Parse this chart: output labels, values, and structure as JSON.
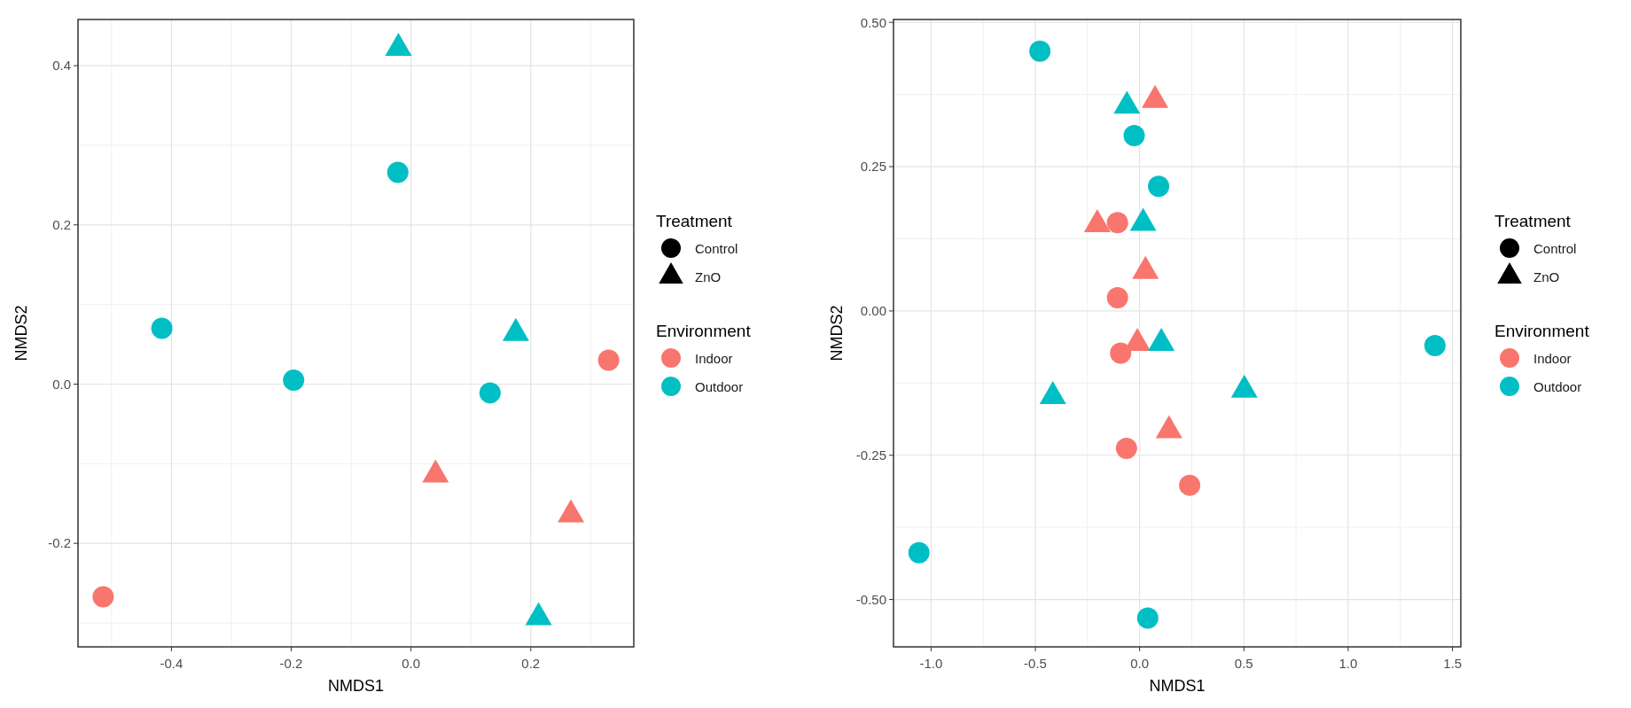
{
  "chart_data": [
    {
      "type": "scatter",
      "xlabel": "NMDS1",
      "ylabel": "NMDS2",
      "xlim": [
        -0.556,
        0.372
      ],
      "ylim": [
        -0.33,
        0.458
      ],
      "xticks": [
        {
          "value": -0.4,
          "label": "-0.4"
        },
        {
          "value": -0.2,
          "label": "-0.2"
        },
        {
          "value": 0,
          "label": "0.0"
        },
        {
          "value": 0.2,
          "label": "0.2"
        }
      ],
      "yticks": [
        {
          "value": -0.2,
          "label": "-0.2"
        },
        {
          "value": 0,
          "label": "0.0"
        },
        {
          "value": 0.2,
          "label": "0.2"
        },
        {
          "value": 0.4,
          "label": "0.4"
        }
      ],
      "grid": true,
      "legend": "right",
      "legend_title": "Environment",
      "annotations": [
        "Treatment",
        "Control",
        "ZnO"
      ],
      "series": [
        {
          "name": "Indoor",
          "color": "#f8766d",
          "marker": "circle",
          "x": [
            0.33,
            -0.514
          ],
          "values": [
            0.03,
            -0.267
          ]
        },
        {
          "color": "#f8766d",
          "marker": "triangle",
          "x": [
            0.041,
            0.267
          ],
          "values": [
            -0.114,
            -0.164
          ]
        },
        {
          "name": "Outdoor",
          "color": "#00bfc4",
          "marker": "circle",
          "x": [
            -0.022,
            -0.416,
            -0.196,
            0.132
          ],
          "values": [
            0.266,
            0.07,
            0.005,
            -0.011
          ]
        },
        {
          "color": "#00bfc4",
          "marker": "triangle",
          "x": [
            -0.021,
            0.175,
            0.213
          ],
          "values": [
            0.422,
            0.064,
            -0.293
          ]
        }
      ]
    },
    {
      "type": "scatter",
      "xlabel": "NMDS1",
      "ylabel": "NMDS2",
      "xlim": [
        -1.18,
        1.54
      ],
      "ylim": [
        -0.582,
        0.505
      ],
      "xticks": [
        {
          "value": -1,
          "label": "-1.0"
        },
        {
          "value": -0.5,
          "label": "-0.5"
        },
        {
          "value": 0,
          "label": "0.0"
        },
        {
          "value": 0.5,
          "label": "0.5"
        },
        {
          "value": 1,
          "label": "1.0"
        },
        {
          "value": 1.5,
          "label": "1.5"
        }
      ],
      "yticks": [
        {
          "value": -0.5,
          "label": "-0.50"
        },
        {
          "value": -0.25,
          "label": "-0.25"
        },
        {
          "value": 0,
          "label": "0.00"
        },
        {
          "value": 0.25,
          "label": "0.25"
        },
        {
          "value": 0.5,
          "label": "0.50"
        }
      ],
      "grid": true,
      "legend": "right",
      "legend_title": "Environment",
      "annotations": [
        "Treatment",
        "Control",
        "ZnO"
      ],
      "series": [
        {
          "name": "Indoor",
          "color": "#f8766d",
          "marker": "circle",
          "x": [
            -0.106,
            -0.106,
            -0.091,
            -0.063,
            0.24
          ],
          "values": [
            0.153,
            0.023,
            -0.073,
            -0.238,
            -0.302
          ]
        },
        {
          "color": "#f8766d",
          "marker": "triangle",
          "x": [
            0.074,
            -0.203,
            0.028,
            -0.011,
            0.141
          ],
          "values": [
            0.365,
            0.15,
            0.069,
            -0.056,
            -0.207
          ]
        },
        {
          "name": "Outdoor",
          "color": "#00bfc4",
          "marker": "circle",
          "x": [
            -0.478,
            -0.026,
            0.091,
            1.416,
            -1.058,
            0.039
          ],
          "values": [
            0.45,
            0.304,
            0.216,
            -0.06,
            -0.419,
            -0.532
          ]
        },
        {
          "color": "#00bfc4",
          "marker": "triangle",
          "x": [
            -0.061,
            0.017,
            0.104,
            -0.416,
            0.502
          ],
          "values": [
            0.355,
            0.152,
            -0.056,
            -0.148,
            -0.137
          ]
        }
      ]
    }
  ]
}
